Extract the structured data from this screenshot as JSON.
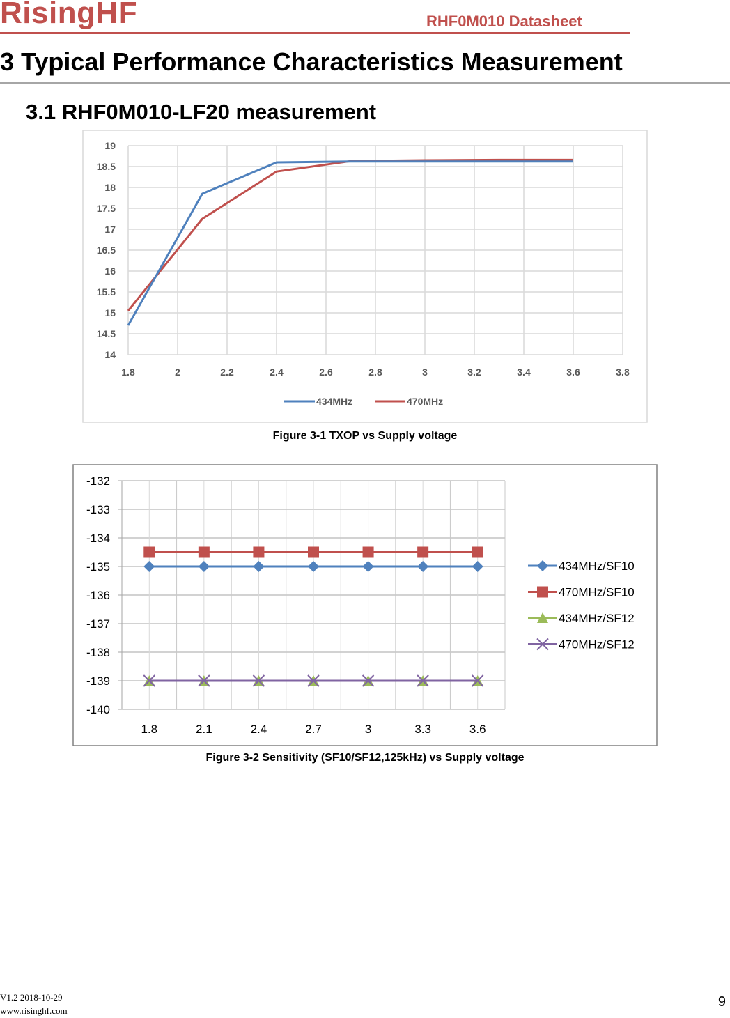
{
  "header": {
    "brand": "RisingHF",
    "doc_title": "RHF0M010 Datasheet"
  },
  "chapter_title": "3 Typical Performance Characteristics Measurement",
  "section_title": "3.1 RHF0M010-LF20 measurement",
  "figures": [
    {
      "caption": "Figure 3-1 TXOP vs Supply voltage"
    },
    {
      "caption": "Figure 3-2 Sensitivity (SF10/SF12,125kHz) vs Supply voltage"
    }
  ],
  "footer": {
    "version": "V1.2 2018-10-29",
    "url": "www.risinghf.com",
    "page_number": "9"
  },
  "colors": {
    "brand": "#c0504d",
    "blue": "#4f81bd",
    "red": "#c0504d",
    "green": "#9bbb59",
    "purple": "#8064a2"
  },
  "chart_data": [
    {
      "type": "line",
      "title": "TXOP vs Supply voltage",
      "xlabel": "",
      "ylabel": "",
      "x": [
        1.8,
        2.1,
        2.4,
        2.7,
        3.0,
        3.3,
        3.6
      ],
      "xlim": [
        1.8,
        3.8
      ],
      "x_ticks": [
        "1.8",
        "2",
        "2.2",
        "2.4",
        "2.6",
        "2.8",
        "3",
        "3.2",
        "3.4",
        "3.6",
        "3.8"
      ],
      "ylim": [
        14,
        19
      ],
      "y_ticks": [
        "19",
        "18.5",
        "18",
        "17.5",
        "17",
        "16.5",
        "16",
        "15.5",
        "15",
        "14.5",
        "14"
      ],
      "grid": true,
      "legend_position": "bottom",
      "series": [
        {
          "name": "434MHz",
          "color": "#4f81bd",
          "values": [
            14.7,
            17.85,
            18.6,
            18.62,
            18.62,
            18.62,
            18.62
          ]
        },
        {
          "name": "470MHz",
          "color": "#c0504d",
          "values": [
            15.05,
            17.25,
            18.38,
            18.63,
            18.65,
            18.66,
            18.66
          ]
        }
      ]
    },
    {
      "type": "line",
      "title": "Sensitivity (SF10/SF12,125kHz) vs Supply voltage",
      "xlabel": "",
      "ylabel": "",
      "categories": [
        "1.8",
        "2.1",
        "2.4",
        "2.7",
        "3",
        "3.3",
        "3.6"
      ],
      "ylim": [
        -140,
        -132
      ],
      "y_ticks": [
        "-132",
        "-133",
        "-134",
        "-135",
        "-136",
        "-137",
        "-138",
        "-139",
        "-140"
      ],
      "grid": true,
      "legend_position": "right",
      "series": [
        {
          "name": "434MHz/SF10",
          "color": "#4f81bd",
          "marker": "diamond",
          "values": [
            -135,
            -135,
            -135,
            -135,
            -135,
            -135,
            -135
          ]
        },
        {
          "name": "470MHz/SF10",
          "color": "#c0504d",
          "marker": "square",
          "values": [
            -134.5,
            -134.5,
            -134.5,
            -134.5,
            -134.5,
            -134.5,
            -134.5
          ]
        },
        {
          "name": "434MHz/SF12",
          "color": "#9bbb59",
          "marker": "triangle",
          "values": [
            -139,
            -139,
            -139,
            -139,
            -139,
            -139,
            -139
          ]
        },
        {
          "name": "470MHz/SF12",
          "color": "#8064a2",
          "marker": "x",
          "values": [
            -139,
            -139,
            -139,
            -139,
            -139,
            -139,
            -139
          ]
        }
      ]
    }
  ]
}
